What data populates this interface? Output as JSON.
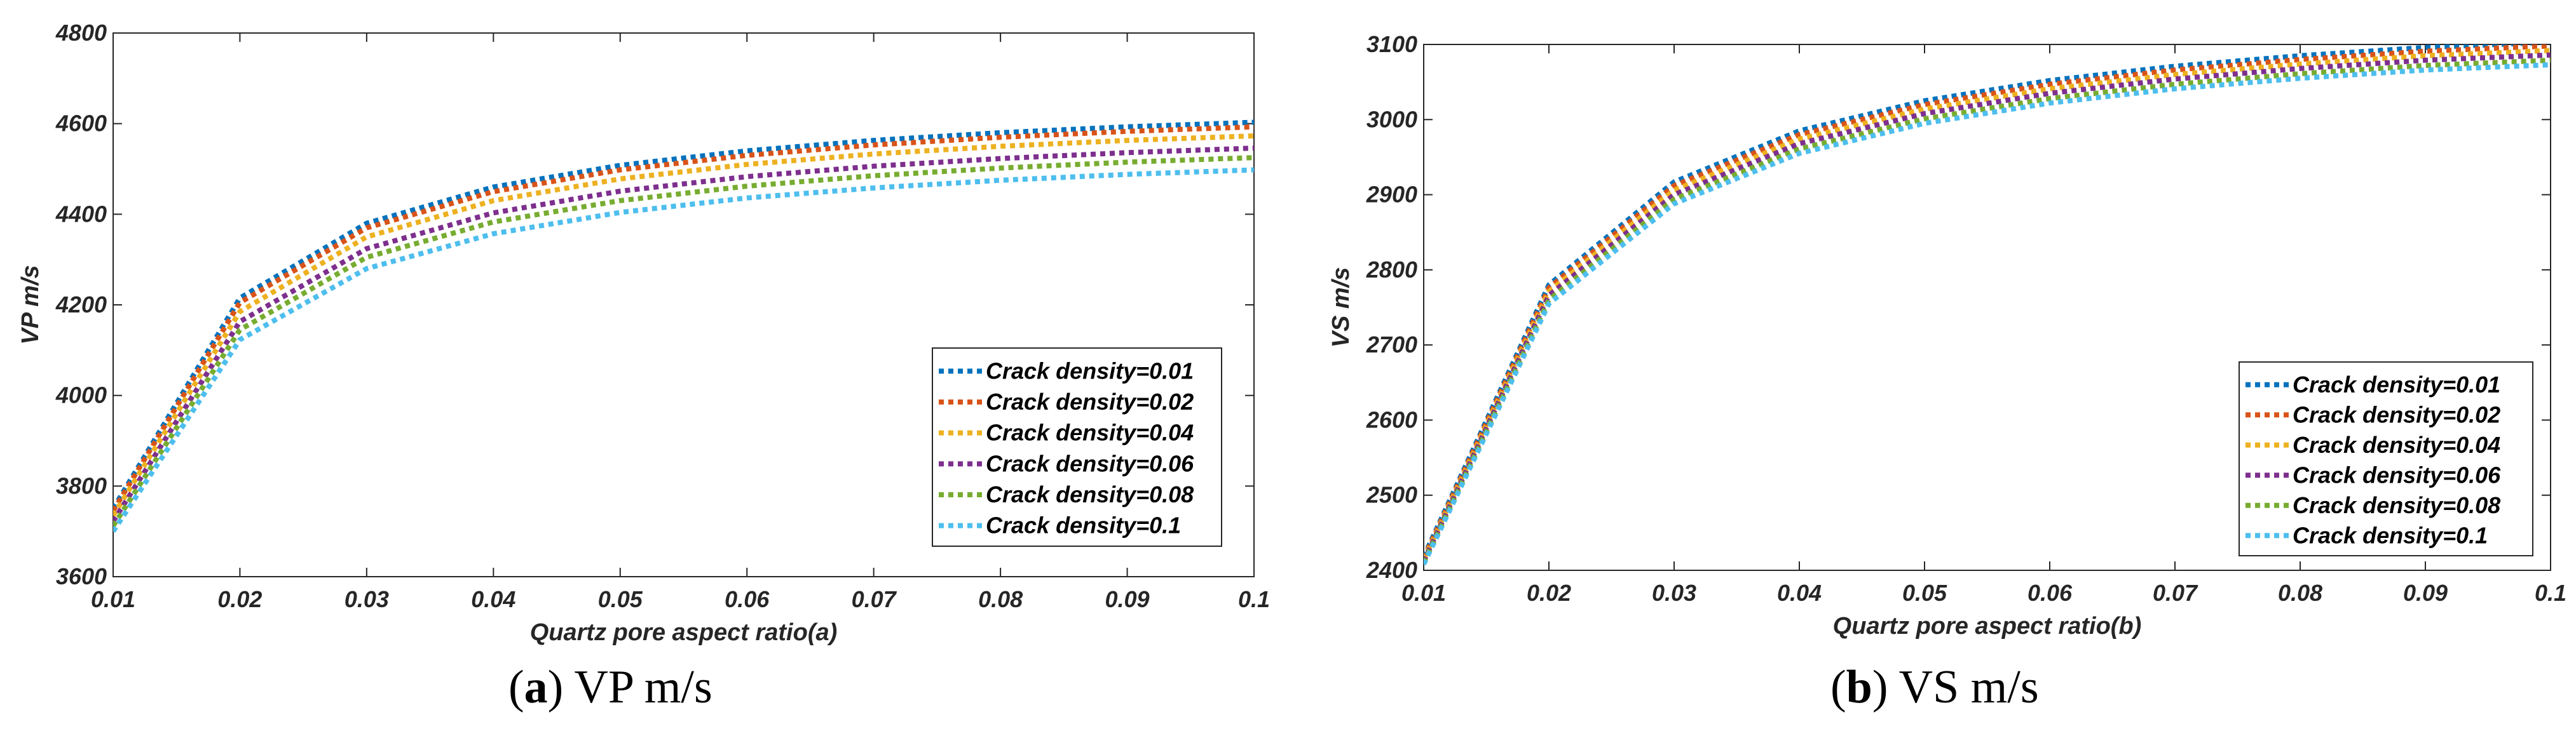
{
  "chart_data": [
    {
      "type": "line",
      "xlabel": "Quartz pore aspect ratio(a)",
      "ylabel": "VP m/s",
      "xlim": [
        0.01,
        0.1
      ],
      "ylim": [
        3600,
        4800
      ],
      "xticks": [
        "0.01",
        "0.02",
        "0.03",
        "0.04",
        "0.05",
        "0.06",
        "0.07",
        "0.08",
        "0.09",
        "0.1"
      ],
      "yticks": [
        "3600",
        "3800",
        "4000",
        "4200",
        "4400",
        "4600",
        "4800"
      ],
      "grid": false,
      "legend_position": "bottom-right",
      "caption_letter": "a",
      "caption_text": "VP m/s",
      "x": [
        0.01,
        0.02,
        0.03,
        0.04,
        0.05,
        0.06,
        0.07,
        0.08,
        0.09,
        0.1
      ],
      "series": [
        {
          "name": "Crack density=0.01",
          "color": "#0072BD",
          "values": [
            3750,
            4215,
            4380,
            4460,
            4508,
            4540,
            4563,
            4580,
            4593,
            4603
          ]
        },
        {
          "name": "Crack density=0.02",
          "color": "#D95319",
          "values": [
            3745,
            4205,
            4370,
            4450,
            4498,
            4530,
            4553,
            4570,
            4583,
            4593
          ]
        },
        {
          "name": "Crack density=0.04",
          "color": "#EDB120",
          "values": [
            3735,
            4185,
            4350,
            4430,
            4478,
            4510,
            4533,
            4550,
            4563,
            4573
          ]
        },
        {
          "name": "Crack density=0.06",
          "color": "#7E2F8E",
          "values": [
            3722,
            4163,
            4324,
            4403,
            4451,
            4483,
            4506,
            4523,
            4536,
            4546
          ]
        },
        {
          "name": "Crack density=0.08",
          "color": "#77AC30",
          "values": [
            3712,
            4145,
            4305,
            4383,
            4430,
            4462,
            4485,
            4502,
            4515,
            4525
          ]
        },
        {
          "name": "Crack density=0.1",
          "color": "#4DBEEE",
          "values": [
            3700,
            4123,
            4280,
            4357,
            4404,
            4436,
            4458,
            4475,
            4488,
            4498
          ]
        }
      ]
    },
    {
      "type": "line",
      "xlabel": "Quartz pore aspect ratio(b)",
      "ylabel": "VS m/s",
      "xlim": [
        0.01,
        0.1
      ],
      "ylim": [
        2400,
        3100
      ],
      "xticks": [
        "0.01",
        "0.02",
        "0.03",
        "0.04",
        "0.05",
        "0.06",
        "0.07",
        "0.08",
        "0.09",
        "0.1"
      ],
      "yticks": [
        "2400",
        "2500",
        "2600",
        "2700",
        "2800",
        "2900",
        "3000",
        "3100"
      ],
      "grid": false,
      "legend_position": "bottom-right",
      "caption_letter": "b",
      "caption_text": "VS m/s",
      "x": [
        0.01,
        0.02,
        0.03,
        0.04,
        0.05,
        0.06,
        0.07,
        0.08,
        0.09,
        0.1
      ],
      "series": [
        {
          "name": "Crack density=0.01",
          "color": "#0072BD",
          "values": [
            2418,
            2780,
            2917,
            2985,
            3025,
            3052,
            3071,
            3085,
            3096,
            3103
          ]
        },
        {
          "name": "Crack density=0.02",
          "color": "#D95319",
          "values": [
            2416,
            2776,
            2912,
            2980,
            3020,
            3047,
            3066,
            3080,
            3091,
            3098
          ]
        },
        {
          "name": "Crack density=0.04",
          "color": "#EDB120",
          "values": [
            2414,
            2771,
            2906,
            2974,
            3014,
            3041,
            3060,
            3074,
            3085,
            3092
          ]
        },
        {
          "name": "Crack density=0.06",
          "color": "#7E2F8E",
          "values": [
            2412,
            2766,
            2900,
            2968,
            3008,
            3035,
            3054,
            3068,
            3079,
            3086
          ]
        },
        {
          "name": "Crack density=0.08",
          "color": "#77AC30",
          "values": [
            2410,
            2760,
            2894,
            2961,
            3001,
            3028,
            3047,
            3061,
            3072,
            3079
          ]
        },
        {
          "name": "Crack density=0.1",
          "color": "#4DBEEE",
          "values": [
            2408,
            2755,
            2888,
            2955,
            2995,
            3022,
            3041,
            3055,
            3066,
            3073
          ]
        }
      ]
    }
  ]
}
